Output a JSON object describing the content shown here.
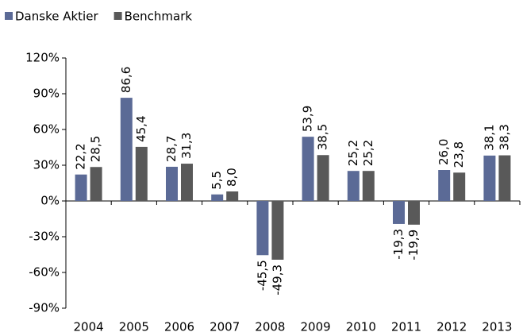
{
  "chart_data": {
    "type": "bar",
    "categories": [
      "2004",
      "2005",
      "2006",
      "2007",
      "2008",
      "2009",
      "2010",
      "2011",
      "2012",
      "2013"
    ],
    "series": [
      {
        "name": "Danske Aktier",
        "color": "#5b6a96",
        "values": [
          22.2,
          86.6,
          28.7,
          5.5,
          -45.5,
          53.9,
          25.2,
          -19.3,
          26.0,
          38.1
        ],
        "value_labels": [
          "22,2",
          "86,6",
          "28,7",
          "5,5",
          "-45,5",
          "53,9",
          "25,2",
          "-19,3",
          "26,0",
          "38,1"
        ]
      },
      {
        "name": "Benchmark",
        "color": "#595959",
        "values": [
          28.5,
          45.4,
          31.3,
          8.0,
          -49.3,
          38.5,
          25.2,
          -19.9,
          23.8,
          38.3
        ],
        "value_labels": [
          "28,5",
          "45,4",
          "31,3",
          "8,0",
          "-49,3",
          "38,5",
          "25,2",
          "-19,9",
          "23,8",
          "38,3"
        ]
      }
    ],
    "ylim": [
      -90,
      120
    ],
    "yticks": [
      {
        "value": -90,
        "label": "-90%"
      },
      {
        "value": -60,
        "label": "-60%"
      },
      {
        "value": -30,
        "label": "-30%"
      },
      {
        "value": 0,
        "label": "0%"
      },
      {
        "value": 30,
        "label": "30%"
      },
      {
        "value": 60,
        "label": "60%"
      },
      {
        "value": 90,
        "label": "90%"
      },
      {
        "value": 120,
        "label": "120%"
      }
    ],
    "legend": "top-left"
  }
}
